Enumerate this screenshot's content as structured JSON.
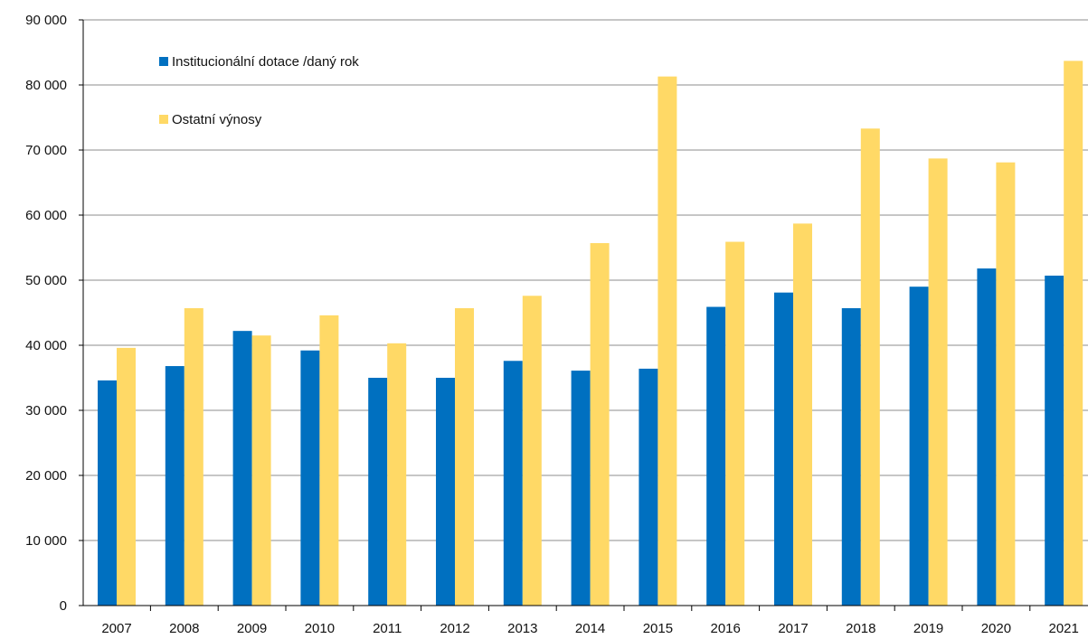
{
  "chart_data": {
    "type": "bar",
    "title": "",
    "xlabel": "",
    "ylabel": "",
    "categories": [
      "2007",
      "2008",
      "2009",
      "2010",
      "2011",
      "2012",
      "2013",
      "2014",
      "2015",
      "2016",
      "2017",
      "2018",
      "2019",
      "2020",
      "2021"
    ],
    "series": [
      {
        "name": "Institucionální dotace /daný rok",
        "color": "#0070c0",
        "values": [
          34600,
          36800,
          42200,
          39200,
          35000,
          35000,
          37600,
          36100,
          36400,
          45900,
          48100,
          45700,
          49000,
          51800,
          50700
        ]
      },
      {
        "name": "Ostatní výnosy",
        "color": "#ffd966",
        "values": [
          39600,
          45700,
          41500,
          44600,
          40300,
          45700,
          47600,
          55700,
          81300,
          55900,
          58700,
          73300,
          68700,
          68100,
          83700
        ]
      }
    ],
    "ylim": [
      0,
      90000
    ],
    "yticks": [
      0,
      10000,
      20000,
      30000,
      40000,
      50000,
      60000,
      70000,
      80000,
      90000
    ],
    "ytick_labels": [
      "0",
      "10 000",
      "20 000",
      "30 000",
      "40 000",
      "50 000",
      "60 000",
      "70 000",
      "80 000",
      "90 000"
    ],
    "grid": true,
    "legend": "top-left"
  }
}
